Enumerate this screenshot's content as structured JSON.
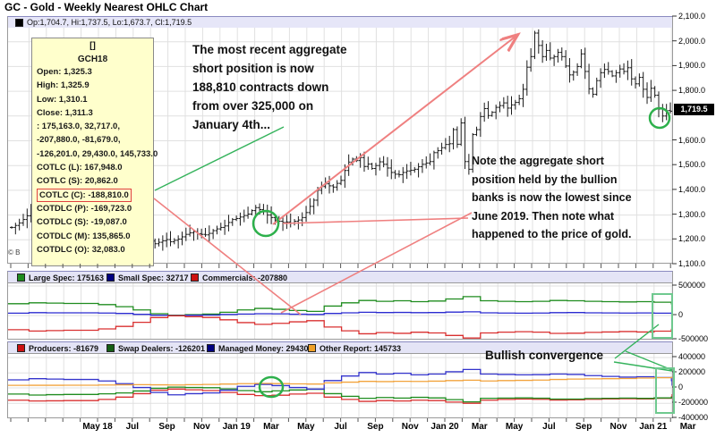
{
  "title": "GC - Gold - Weekly Nearest OHLC Chart",
  "info_bar": {
    "text": "Op:1,704.7, Hi:1,737.5, Lo:1,673.7, Cl:1,719.5"
  },
  "copyright": "© B",
  "tooltip": {
    "header": "[]",
    "symbol": "GCH18",
    "rows": [
      "Open: 1,325.3",
      "High: 1,325.9",
      "Low: 1,310.1",
      "Close: 1,311.3",
      ": 175,163.0, 32,717.0,",
      "-207,880.0, -81,679.0,",
      "-126,201.0, 29,430.0, 145,733.0",
      "COTLC (L): 167,948.0",
      "COTLC (S): 20,862.0",
      "COTLC (C): -188,810.0",
      "COTDLC (P): -169,723.0",
      "COTDLC (S): -19,087.0",
      "COTDLC (M): 135,865.0",
      "COTDLC (O): 32,083.0"
    ],
    "highlighted_row_index": 9
  },
  "annotations": {
    "block1": "The most recent aggregate\nshort position is now\n188,810 contracts down\nfrom over 325,000 on\nJanuary 4th...",
    "block2": "Note the aggregate short\nposition held by the bullion\nbanks is now the lowest since\nJune 2019.   Then note what\nhappened to the price of gold.",
    "bullish": "Bullish convergence"
  },
  "axes": {
    "main_ticks": [
      "2,100.0",
      "2,000.0",
      "1,900.0",
      "1,800.0",
      "1,600.0",
      "1,500.0",
      "1,400.0",
      "1,300.0",
      "1,200.0",
      "1,100.0"
    ],
    "last_price": "1,719.5",
    "panel1_ticks": [
      "500000",
      "0",
      "-500000"
    ],
    "panel2_ticks": [
      "400000",
      "200000",
      "0",
      "-200000",
      "-400000"
    ],
    "x_labels": [
      "May 18",
      "Jul",
      "Sep",
      "Nov",
      "Jan 19",
      "Mar",
      "May",
      "Jul",
      "Sep",
      "Nov",
      "Jan 20",
      "Mar",
      "May",
      "Jul",
      "Sep",
      "Nov",
      "Jan 21",
      "Mar"
    ]
  },
  "legends": {
    "panel1": [
      {
        "label": "Large Spec: 175163",
        "color": "#1f8c1f"
      },
      {
        "label": "Small Spec: 32717",
        "color": "#000080"
      },
      {
        "label": "Commercials: -207880",
        "color": "#cc1111"
      }
    ],
    "panel2": [
      {
        "label": "Producers: -81679",
        "color": "#cc1111"
      },
      {
        "label": "Swap Dealers: -126201",
        "color": "#155e15"
      },
      {
        "label": "Managed Money: 29430",
        "color": "#000080"
      },
      {
        "label": "Other Report: 145733",
        "color": "#f0a028"
      }
    ]
  },
  "chart_data": [
    {
      "type": "ohlc",
      "title": "GC Gold Weekly Nearest, weekly closes (est.), Dec 2017 - Mar 2021",
      "ylim": [
        1100,
        2100
      ],
      "y_gridstep": 100,
      "last_close": 1719.5,
      "closes": [
        1250,
        1258,
        1268,
        1282,
        1297,
        1310,
        1322,
        1335,
        1342,
        1333,
        1325,
        1318,
        1329,
        1340,
        1327,
        1318,
        1324,
        1336,
        1340,
        1333,
        1325,
        1315,
        1305,
        1298,
        1300,
        1293,
        1285,
        1276,
        1270,
        1268,
        1255,
        1242,
        1232,
        1224,
        1221,
        1213,
        1195,
        1184,
        1190,
        1196,
        1201,
        1192,
        1198,
        1203,
        1212,
        1222,
        1228,
        1233,
        1225,
        1222,
        1220,
        1226,
        1237,
        1244,
        1250,
        1256,
        1270,
        1282,
        1286,
        1292,
        1298,
        1304,
        1318,
        1330,
        1322,
        1313,
        1300,
        1290,
        1280,
        1275,
        1270,
        1272,
        1268,
        1275,
        1280,
        1290,
        1310,
        1335,
        1360,
        1400,
        1415,
        1426,
        1418,
        1413,
        1428,
        1440,
        1480,
        1514,
        1526,
        1520,
        1532,
        1496,
        1506,
        1488,
        1500,
        1515,
        1505,
        1490,
        1472,
        1465,
        1463,
        1472,
        1478,
        1481,
        1485,
        1495,
        1505,
        1510,
        1516,
        1552,
        1560,
        1572,
        1585,
        1588,
        1645,
        1586,
        1672,
        1516,
        1485,
        1625,
        1645,
        1698,
        1730,
        1702,
        1715,
        1735,
        1742,
        1753,
        1732,
        1745,
        1755,
        1770,
        1808,
        1897,
        1940,
        2035,
        1985,
        1940,
        1965,
        1934,
        1940,
        1957,
        1940,
        1902,
        1866,
        1877,
        1900,
        1951,
        1880,
        1810,
        1788,
        1843,
        1875,
        1888,
        1880,
        1862,
        1875,
        1890,
        1880,
        1895,
        1850,
        1830,
        1856,
        1808,
        1775,
        1812,
        1784,
        1728,
        1700,
        1722,
        1719.5
      ]
    },
    {
      "type": "line",
      "title": "COT Legacy net positions (est., thousands of contracts, monthly Dec 2017 - Mar 2021)",
      "ylim": [
        -500000,
        500000
      ],
      "series": [
        {
          "name": "Large Spec",
          "color": "#1f8c1f",
          "current": 175163,
          "values_k": [
            200,
            215,
            210,
            205,
            205,
            185,
            150,
            95,
            30,
            5,
            15,
            25,
            55,
            95,
            120,
            105,
            85,
            70,
            160,
            215,
            255,
            240,
            250,
            235,
            245,
            280,
            320,
            250,
            240,
            235,
            240,
            255,
            250,
            240,
            235,
            230,
            235,
            225,
            200,
            175
          ]
        },
        {
          "name": "Small Spec",
          "color": "#2a2ad0",
          "current": 32717,
          "values_k": [
            40,
            48,
            46,
            45,
            45,
            42,
            35,
            20,
            5,
            0,
            5,
            8,
            18,
            25,
            30,
            28,
            22,
            18,
            35,
            45,
            55,
            50,
            52,
            48,
            50,
            58,
            62,
            45,
            42,
            40,
            42,
            48,
            50,
            46,
            44,
            42,
            44,
            40,
            36,
            33
          ]
        },
        {
          "name": "Commercials",
          "color": "#d93030",
          "current": -207880,
          "values_k": [
            -240,
            -263,
            -256,
            -250,
            -250,
            -227,
            -185,
            -115,
            -35,
            -5,
            -20,
            -33,
            -73,
            -120,
            -150,
            -133,
            -107,
            -88,
            -195,
            -260,
            -310,
            -290,
            -302,
            -283,
            -295,
            -338,
            -382,
            -295,
            -282,
            -275,
            -282,
            -303,
            -300,
            -286,
            -279,
            -272,
            -279,
            -265,
            -236,
            -208
          ]
        }
      ]
    },
    {
      "type": "line",
      "title": "COT Disaggregated net positions (est., thousands of contracts, monthly Dec 2017 - Mar 2021)",
      "ylim": [
        -400000,
        400000
      ],
      "series": [
        {
          "name": "Producers",
          "color": "#d93030",
          "current": -81679,
          "values_k": [
            -160,
            -170,
            -168,
            -165,
            -165,
            -150,
            -120,
            -75,
            -30,
            -15,
            -25,
            -35,
            -60,
            -85,
            -100,
            -95,
            -80,
            -70,
            -120,
            -150,
            -175,
            -165,
            -170,
            -160,
            -165,
            -185,
            -200,
            -160,
            -150,
            -145,
            -148,
            -158,
            -155,
            -148,
            -144,
            -140,
            -143,
            -135,
            -115,
            -82
          ]
        },
        {
          "name": "Swap Dealers",
          "color": "#1f8c1f",
          "current": -126201,
          "values_k": [
            -80,
            -93,
            -88,
            -85,
            -85,
            -77,
            -65,
            -40,
            -5,
            10,
            5,
            2,
            -13,
            -35,
            -50,
            -38,
            -27,
            -18,
            -75,
            -110,
            -135,
            -125,
            -132,
            -123,
            -130,
            -153,
            -182,
            -135,
            -132,
            -130,
            -134,
            -145,
            -145,
            -138,
            -135,
            -132,
            -136,
            -130,
            -121,
            -126
          ]
        },
        {
          "name": "Managed Money",
          "color": "#3333cc",
          "current": 29430,
          "values_k": [
            105,
            120,
            115,
            110,
            110,
            90,
            55,
            5,
            -60,
            -90,
            -75,
            -65,
            -30,
            20,
            45,
            30,
            5,
            -15,
            95,
            155,
            200,
            180,
            190,
            170,
            180,
            210,
            240,
            180,
            175,
            170,
            172,
            180,
            175,
            160,
            150,
            140,
            145,
            135,
            95,
            29
          ]
        },
        {
          "name": "Other Report",
          "color": "#f2a33c",
          "current": 145733,
          "values_k": [
            33,
            34,
            34,
            35,
            35,
            38,
            40,
            42,
            40,
            38,
            42,
            45,
            50,
            55,
            58,
            56,
            52,
            50,
            65,
            75,
            85,
            82,
            86,
            84,
            88,
            95,
            100,
            90,
            95,
            98,
            102,
            110,
            115,
            118,
            120,
            122,
            128,
            132,
            138,
            146
          ]
        }
      ]
    }
  ],
  "colors": {
    "bars": "#1a1a1a",
    "grid": "#e0e0e0",
    "annotation_red": "#ef8080",
    "annotation_green": "#35b35c",
    "highlight_rect_green": "#6fc98f",
    "tooltip_box_red": "#e04040",
    "badge_bg": "#000000",
    "band_bg": "#e4e4f6",
    "tooltip_bg": "#ffffcc"
  }
}
